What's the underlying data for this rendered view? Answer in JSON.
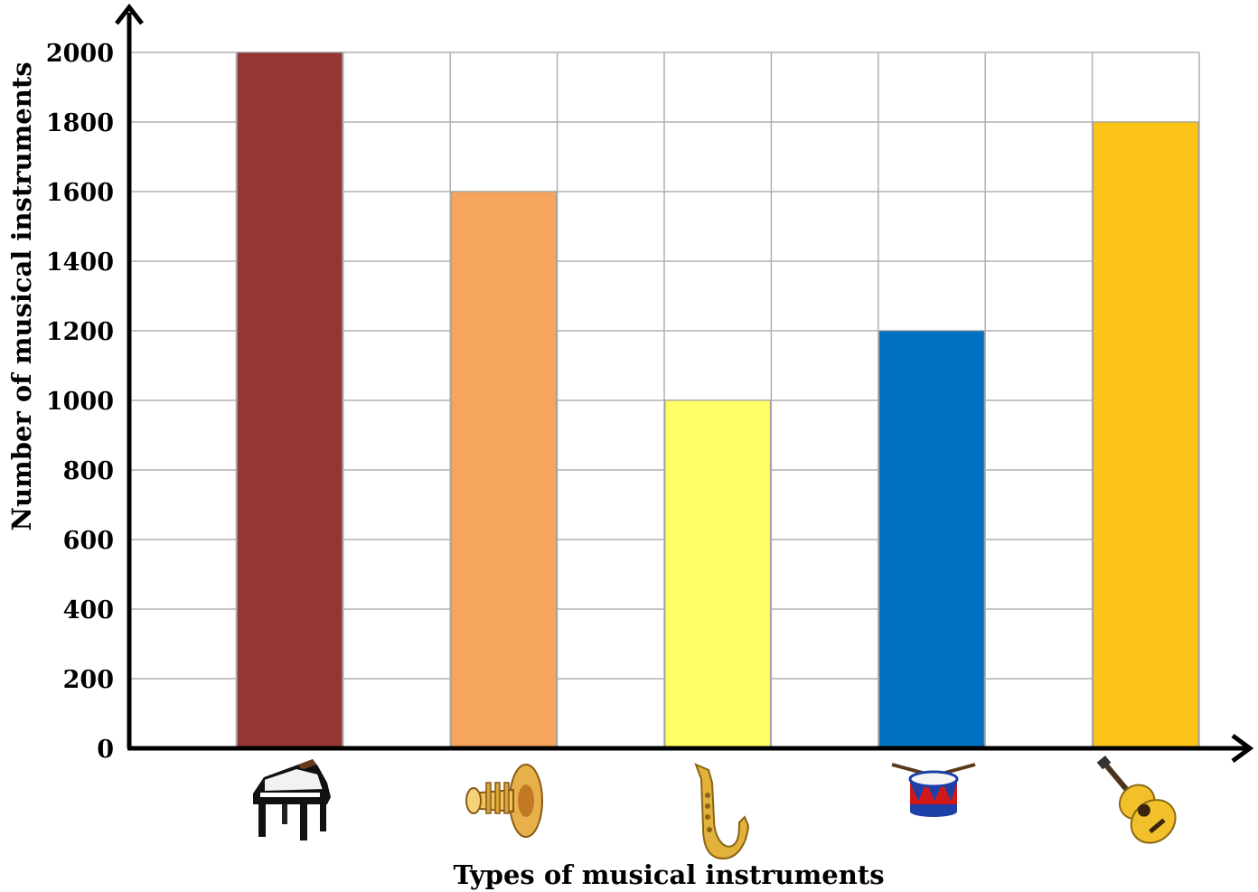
{
  "chart_data": {
    "type": "bar",
    "title": "",
    "xlabel": "Types of musical instruments",
    "ylabel": "Number of musical instruments",
    "ylim": [
      0,
      2000
    ],
    "yticks": [
      0,
      200,
      400,
      600,
      800,
      1000,
      1200,
      1400,
      1600,
      1800,
      2000
    ],
    "grid": true,
    "legend": "none",
    "categories": [
      "piano-icon",
      "trumpet-icon",
      "saxophone-icon",
      "drum-icon",
      "guitar-icon"
    ],
    "values": [
      2000,
      1600,
      1000,
      1200,
      1800
    ],
    "colors": [
      "#943634",
      "#F6A55F",
      "#FFFF66",
      "#0070C0",
      "#FCC419"
    ]
  }
}
